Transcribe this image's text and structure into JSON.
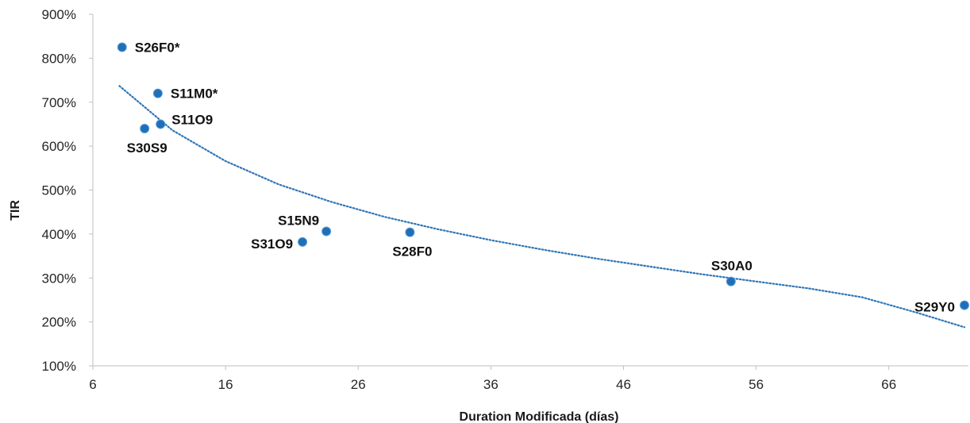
{
  "chart_data": {
    "type": "scatter",
    "title": "",
    "xlabel": "Duration Modificada (días)",
    "ylabel": "TIR",
    "xlim": [
      6,
      72
    ],
    "ylim": [
      100,
      900
    ],
    "x_ticks": [
      6,
      16,
      26,
      36,
      46,
      56,
      66
    ],
    "x_tick_labels": [
      "6",
      "16",
      "26",
      "36",
      "46",
      "56",
      "66"
    ],
    "y_ticks": [
      100,
      200,
      300,
      400,
      500,
      600,
      700,
      800,
      900
    ],
    "y_tick_labels": [
      "100%",
      "200%",
      "300%",
      "400%",
      "500%",
      "600%",
      "700%",
      "800%",
      "900%"
    ],
    "grid": false,
    "legend": "none",
    "point_color": "#1F6FB8",
    "trend_color": "#2E75B6",
    "points": [
      {
        "label": "S26F0*",
        "x": 8.2,
        "y": 825,
        "label_pos": "right"
      },
      {
        "label": "S11M0*",
        "x": 10.9,
        "y": 720,
        "label_pos": "right"
      },
      {
        "label": "S11O9",
        "x": 11.1,
        "y": 650,
        "label_pos": "right-up"
      },
      {
        "label": "S30S9",
        "x": 9.9,
        "y": 640,
        "label_pos": "below"
      },
      {
        "label": "S15N9",
        "x": 23.6,
        "y": 406,
        "label_pos": "left-up"
      },
      {
        "label": "S31O9",
        "x": 21.8,
        "y": 382,
        "label_pos": "left"
      },
      {
        "label": "S28F0",
        "x": 29.9,
        "y": 404,
        "label_pos": "below"
      },
      {
        "label": "S30A0",
        "x": 54.1,
        "y": 292,
        "label_pos": "above"
      },
      {
        "label": "S29Y0",
        "x": 71.7,
        "y": 238,
        "label_pos": "left"
      }
    ],
    "trendline": {
      "type": "power",
      "x": [
        8,
        12,
        16,
        20,
        24,
        28,
        32,
        36,
        40,
        44,
        48,
        52,
        56,
        60,
        64,
        68,
        71.7
      ],
      "y": [
        737,
        636,
        566,
        513,
        473,
        439,
        411,
        386,
        364,
        344,
        326,
        308,
        292,
        276,
        256,
        222,
        188
      ]
    }
  }
}
